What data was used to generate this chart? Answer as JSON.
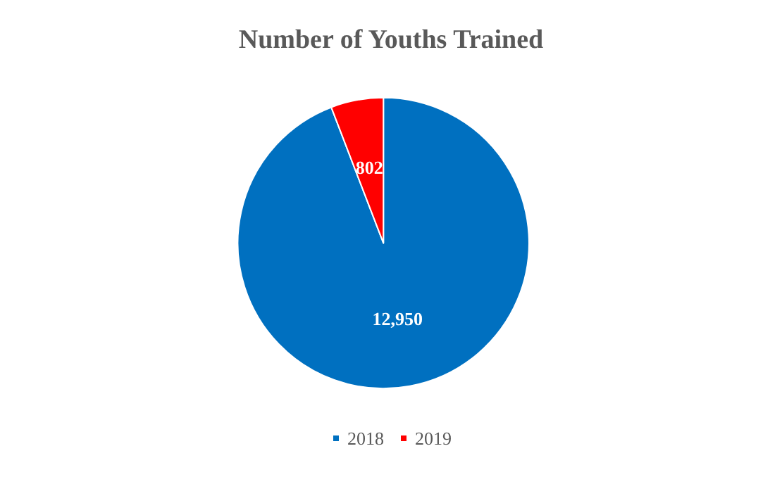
{
  "chart_data": {
    "type": "pie",
    "title": "Number of Youths Trained",
    "categories": [
      "2018",
      "2019"
    ],
    "values": [
      12950,
      802
    ],
    "colors": [
      "#0070c0",
      "#ff0000"
    ],
    "value_labels": [
      "12,950",
      "802"
    ],
    "legend": "bottom"
  }
}
